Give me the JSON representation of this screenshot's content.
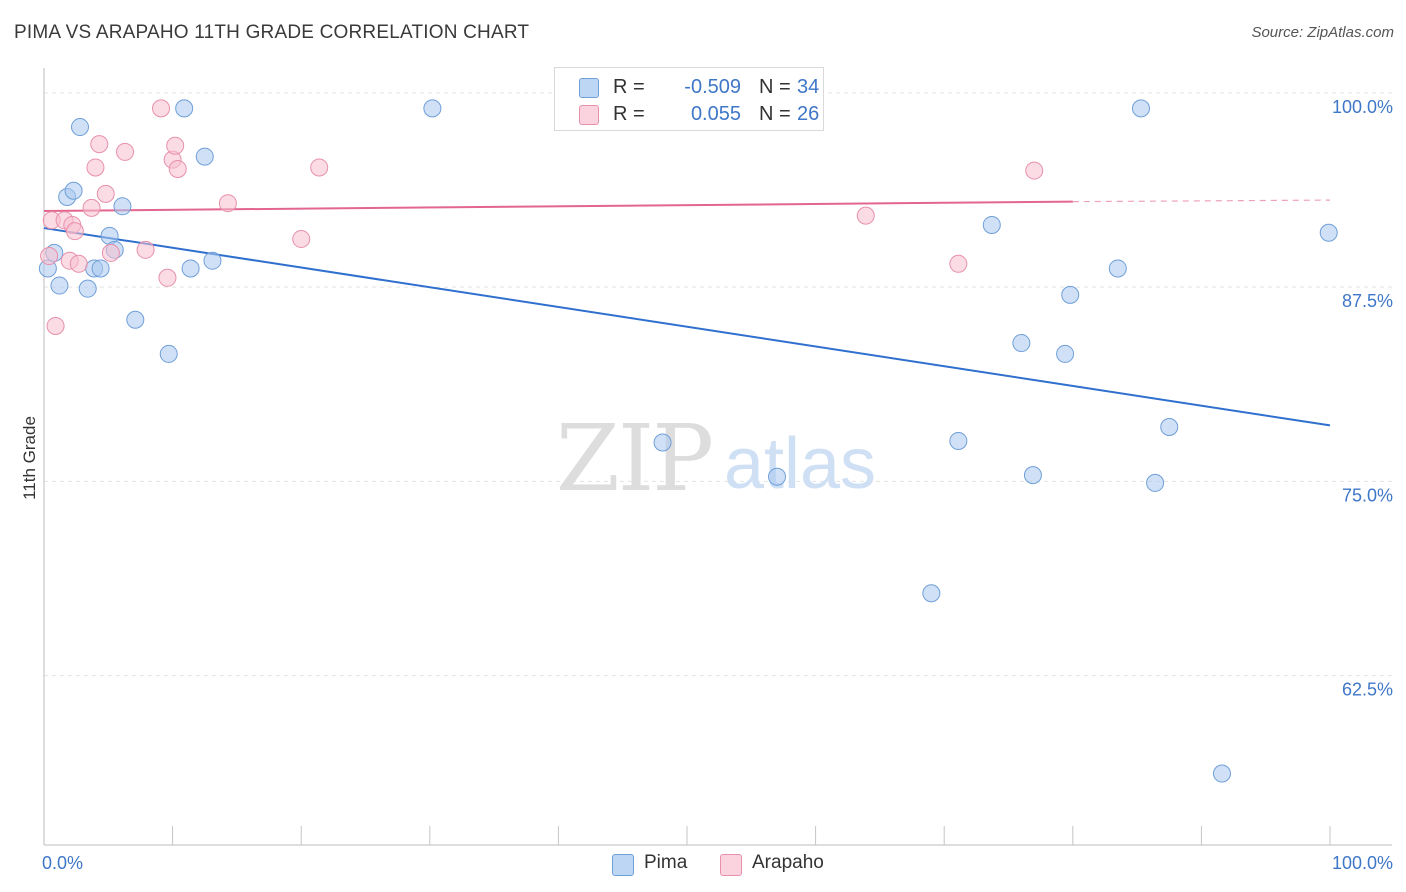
{
  "header": {
    "title": "PIMA VS ARAPAHO 11TH GRADE CORRELATION CHART",
    "source": "Source: ZipAtlas.com"
  },
  "legend": {
    "r_label": "R =",
    "n_label": "N =",
    "series": [
      {
        "r": "-0.509",
        "n": "34"
      },
      {
        "r": "0.055",
        "n": "26"
      }
    ]
  },
  "watermark": {
    "zip": "ZIP",
    "atlas": "atlas"
  },
  "chart_data": {
    "type": "scatter",
    "title": "PIMA VS ARAPAHO 11TH GRADE CORRELATION CHART",
    "xlabel": "",
    "ylabel": "11th Grade",
    "xlim": [
      0,
      100
    ],
    "ylim": [
      52.5,
      102.5
    ],
    "x_tick_labels": [
      {
        "value": 0,
        "label": "0.0%"
      },
      {
        "value": 100,
        "label": "100.0%"
      }
    ],
    "y_tick_labels": [
      {
        "value": 100,
        "label": "100.0%"
      },
      {
        "value": 87.5,
        "label": "87.5%"
      },
      {
        "value": 75,
        "label": "75.0%"
      },
      {
        "value": 62.5,
        "label": "62.5%"
      }
    ],
    "y_gridlines": [
      100.9,
      88.4,
      75.9,
      63.4
    ],
    "x_minor_ticks": [
      10,
      20,
      30,
      40,
      50,
      60,
      70,
      80,
      90
    ],
    "grid": true,
    "legend_position": "top-center",
    "series": [
      {
        "name": "Pima",
        "color": "#a9c8f0",
        "edge": "#6f9fd8",
        "trend_color": "#2f6fce",
        "trend": {
          "x": [
            0,
            100
          ],
          "y": [
            92.2,
            79.5
          ]
        },
        "points": [
          {
            "x": 0.3,
            "y": 89.6
          },
          {
            "x": 0.8,
            "y": 90.6
          },
          {
            "x": 1.2,
            "y": 88.5
          },
          {
            "x": 1.8,
            "y": 94.2
          },
          {
            "x": 2.3,
            "y": 94.6
          },
          {
            "x": 2.8,
            "y": 98.7
          },
          {
            "x": 3.4,
            "y": 88.3
          },
          {
            "x": 3.9,
            "y": 89.6
          },
          {
            "x": 4.4,
            "y": 89.6
          },
          {
            "x": 5.1,
            "y": 91.7
          },
          {
            "x": 5.5,
            "y": 90.8
          },
          {
            "x": 6.1,
            "y": 93.6
          },
          {
            "x": 7.1,
            "y": 86.3
          },
          {
            "x": 9.7,
            "y": 84.1
          },
          {
            "x": 10.9,
            "y": 99.9
          },
          {
            "x": 11.4,
            "y": 89.6
          },
          {
            "x": 12.5,
            "y": 96.8
          },
          {
            "x": 13.1,
            "y": 90.1
          },
          {
            "x": 30.2,
            "y": 99.9
          },
          {
            "x": 48.1,
            "y": 78.4
          },
          {
            "x": 57.0,
            "y": 76.2
          },
          {
            "x": 69.0,
            "y": 68.7
          },
          {
            "x": 71.1,
            "y": 78.5
          },
          {
            "x": 73.7,
            "y": 92.4
          },
          {
            "x": 76.0,
            "y": 84.8
          },
          {
            "x": 76.9,
            "y": 76.3
          },
          {
            "x": 79.4,
            "y": 84.1
          },
          {
            "x": 79.8,
            "y": 87.9
          },
          {
            "x": 83.5,
            "y": 89.6
          },
          {
            "x": 85.3,
            "y": 99.9
          },
          {
            "x": 86.4,
            "y": 75.8
          },
          {
            "x": 87.5,
            "y": 79.4
          },
          {
            "x": 91.6,
            "y": 57.1
          },
          {
            "x": 99.9,
            "y": 91.9
          }
        ]
      },
      {
        "name": "Arapaho",
        "color": "#f7bfd0",
        "edge": "#e890ab",
        "trend_color": "#e2668f",
        "trend": {
          "x": [
            0,
            80
          ],
          "y": [
            93.3,
            93.9
          ]
        },
        "trend_dashed": {
          "x": [
            80,
            100
          ],
          "y": [
            93.9,
            94.0
          ]
        },
        "points": [
          {
            "x": 0.4,
            "y": 90.4
          },
          {
            "x": 0.6,
            "y": 92.7
          },
          {
            "x": 0.9,
            "y": 85.9
          },
          {
            "x": 1.6,
            "y": 92.7
          },
          {
            "x": 2.0,
            "y": 90.1
          },
          {
            "x": 2.2,
            "y": 92.4
          },
          {
            "x": 2.4,
            "y": 92.0
          },
          {
            "x": 2.7,
            "y": 89.9
          },
          {
            "x": 3.7,
            "y": 93.5
          },
          {
            "x": 4.0,
            "y": 96.1
          },
          {
            "x": 4.3,
            "y": 97.6
          },
          {
            "x": 4.8,
            "y": 94.4
          },
          {
            "x": 5.2,
            "y": 90.6
          },
          {
            "x": 6.3,
            "y": 97.1
          },
          {
            "x": 7.9,
            "y": 90.8
          },
          {
            "x": 9.1,
            "y": 99.9
          },
          {
            "x": 9.6,
            "y": 89.0
          },
          {
            "x": 10.0,
            "y": 96.6
          },
          {
            "x": 10.2,
            "y": 97.5
          },
          {
            "x": 10.4,
            "y": 96.0
          },
          {
            "x": 14.3,
            "y": 93.8
          },
          {
            "x": 20.0,
            "y": 91.5
          },
          {
            "x": 21.4,
            "y": 96.1
          },
          {
            "x": 63.9,
            "y": 93.0
          },
          {
            "x": 71.1,
            "y": 89.9
          },
          {
            "x": 77.0,
            "y": 95.9
          }
        ]
      }
    ]
  }
}
